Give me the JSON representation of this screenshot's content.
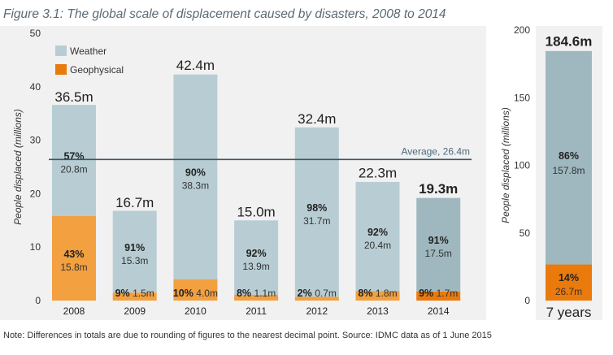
{
  "title": "Figure 3.1: The global scale of displacement caused by disasters, 2008 to 2014",
  "note": "Note: Differences in totals are due to rounding of figures to the nearest decimal point. Source: IDMC data as of 1 June 2015",
  "colors": {
    "weather": "#b7cdd3",
    "weather_highlight": "#9fb8bf",
    "geophysical": "#f2a040",
    "geophysical_dark": "#ea7a0c",
    "average_line": "#3b5566"
  },
  "chart_data": [
    {
      "type": "bar",
      "stacked": true,
      "categories": [
        "2008",
        "2009",
        "2010",
        "2011",
        "2012",
        "2013",
        "2014"
      ],
      "series": [
        {
          "name": "Weather",
          "values": [
            20.8,
            15.3,
            38.3,
            13.9,
            31.7,
            20.4,
            17.5
          ],
          "value_labels": [
            "20.8m",
            "15.3m",
            "38.3m",
            "13.9m",
            "31.7m",
            "20.4m",
            "17.5m"
          ],
          "pct_labels": [
            "57%",
            "91%",
            "90%",
            "92%",
            "98%",
            "92%",
            "91%"
          ]
        },
        {
          "name": "Geophysical",
          "values": [
            15.8,
            1.5,
            4.0,
            1.1,
            0.7,
            1.8,
            1.7
          ],
          "value_labels": [
            "15.8m",
            "1.5m",
            "4.0m",
            "1.1m",
            "0.7m",
            "1.8m",
            "1.7m"
          ],
          "pct_labels": [
            "43%",
            "9%",
            "10%",
            "8%",
            "2%",
            "8%",
            "9%"
          ]
        }
      ],
      "totals": [
        36.5,
        16.7,
        42.4,
        15.0,
        32.4,
        22.3,
        19.3
      ],
      "total_labels": [
        "36.5m",
        "16.7m",
        "42.4m",
        "15.0m",
        "32.4m",
        "22.3m",
        "19.3m"
      ],
      "average": {
        "value": 26.4,
        "label": "Average, 26.4m"
      },
      "ylabel": "People displaced (millions)",
      "ylim": [
        0,
        50
      ],
      "yticks": [
        0,
        10,
        20,
        30,
        40,
        50
      ],
      "grid": false,
      "legend": "top-left",
      "highlight_category": "2014"
    },
    {
      "type": "bar",
      "stacked": true,
      "categories": [
        "7 years"
      ],
      "series": [
        {
          "name": "Weather",
          "values": [
            157.8
          ],
          "value_labels": [
            "157.8m"
          ],
          "pct_labels": [
            "86%"
          ]
        },
        {
          "name": "Geophysical",
          "values": [
            26.7
          ],
          "value_labels": [
            "26.7m"
          ],
          "pct_labels": [
            "14%"
          ]
        }
      ],
      "totals": [
        184.6
      ],
      "total_labels": [
        "184.6m"
      ],
      "ylabel": "People displaced (millions)",
      "ylim": [
        0,
        200
      ],
      "yticks": [
        0,
        50,
        100,
        150,
        200
      ],
      "grid": false
    }
  ]
}
